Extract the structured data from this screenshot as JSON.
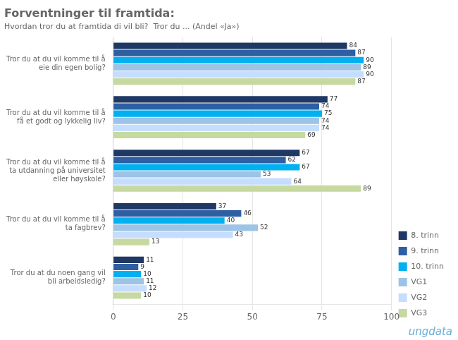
{
  "chart_data": {
    "type": "bar",
    "orientation": "horizontal",
    "title": "Forventninger til framtida:",
    "subtitle": "Hvordan tror du at framtida di vil bli?  Tror du ... (Andel «Ja»)",
    "categories": [
      "Tror du at du vil komme til å\neie din egen bolig?",
      "Tror du at du vil komme til å\nfå et godt og lykkelig liv?",
      "Tror du at du vil komme til å\nta utdanning på universitet\neller høyskole?",
      "Tror du at du vil komme til å\nta fagbrev?",
      "Tror du at du noen gang vil\nbli arbeidsledig?"
    ],
    "series": [
      {
        "name": "8. trinn",
        "color": "#1F3864",
        "values": [
          84,
          77,
          67,
          37,
          11
        ]
      },
      {
        "name": "9. trinn",
        "color": "#2E5FA3",
        "values": [
          87,
          74,
          62,
          46,
          9
        ]
      },
      {
        "name": "10. trinn",
        "color": "#00B0F0",
        "values": [
          90,
          75,
          67,
          40,
          10
        ]
      },
      {
        "name": "VG1",
        "color": "#9DC3E6",
        "values": [
          89,
          74,
          53,
          52,
          11
        ]
      },
      {
        "name": "VG2",
        "color": "#C5DEFF",
        "values": [
          90,
          74,
          64,
          43,
          12
        ]
      },
      {
        "name": "VG3",
        "color": "#C5D9A0",
        "values": [
          87,
          69,
          89,
          13,
          10
        ]
      }
    ],
    "xlim": [
      0,
      100
    ],
    "xticks": [
      0,
      25,
      50,
      75,
      100
    ],
    "grid": true,
    "legend": "lower right",
    "data_labels": true,
    "annotations": [
      "ungdata"
    ]
  }
}
